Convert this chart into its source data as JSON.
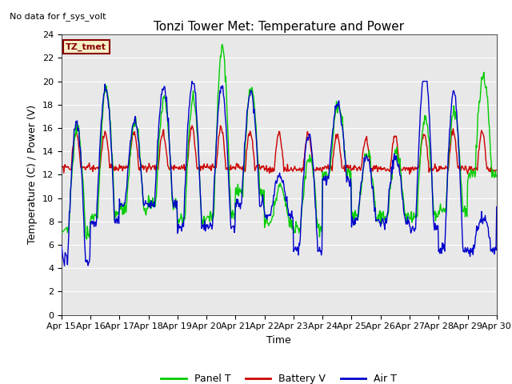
{
  "title": "Tonzi Tower Met: Temperature and Power",
  "no_data_text": "No data for f_sys_volt",
  "legend_box_text": "TZ_tmet",
  "xlabel": "Time",
  "ylabel": "Temperature (C) / Power (V)",
  "ylim": [
    0,
    24
  ],
  "xlim": [
    0,
    360
  ],
  "xtick_labels": [
    "Apr 15",
    "Apr 16",
    "Apr 17",
    "Apr 18",
    "Apr 19",
    "Apr 20",
    "Apr 21",
    "Apr 22",
    "Apr 23",
    "Apr 24",
    "Apr 25",
    "Apr 26",
    "Apr 27",
    "Apr 28",
    "Apr 29",
    "Apr 30"
  ],
  "xtick_positions": [
    0,
    24,
    48,
    72,
    96,
    120,
    144,
    168,
    192,
    216,
    240,
    264,
    288,
    312,
    336,
    360
  ],
  "green_color": "#00CC00",
  "red_color": "#CC0000",
  "blue_color": "#0000CC",
  "plot_bg": "#E8E8E8",
  "fig_bg": "#FFFFFF",
  "legend_box_bg": "#F5F0C8",
  "legend_box_border": "#8B0000",
  "title_fontsize": 11,
  "label_fontsize": 9,
  "tick_fontsize": 8,
  "figsize": [
    6.4,
    4.8
  ],
  "dpi": 100
}
